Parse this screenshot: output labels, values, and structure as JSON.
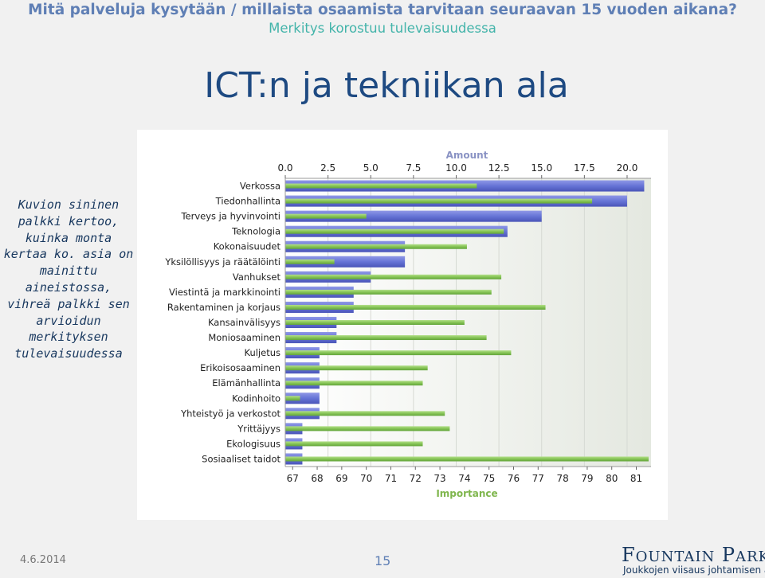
{
  "header": {
    "line1": "Mitä palveluja kysytään / millaista osaamista tarvitaan seuraavan 15 vuoden aikana?",
    "line2": "Merkitys korostuu tulevaisuudessa"
  },
  "slide_title": "ICT:n ja tekniikan ala",
  "side_note": "Kuvion sininen palkki kertoo, kuinka monta kertaa ko. asia on mainittu aineistossa, vihreä palkki sen arvioidun merkityksen tulevaisuudessa",
  "footer": {
    "date": "4.6.2014",
    "page": "15",
    "logo_name": "Fountain Park",
    "logo_tagline": "Joukkojen viisaus johtamisen arkeen"
  },
  "colors": {
    "amount_bar": "#6674d6",
    "importance_bar": "#86c456",
    "header_title": "#5f7fb5",
    "header_subtitle": "#43b4aa",
    "slide_title": "#1e4a82",
    "axis_label": "#8a93c4",
    "axis_label_importance": "#7fb64d"
  },
  "chart_data": {
    "type": "bar",
    "orientation": "horizontal",
    "categories": [
      "Verkossa",
      "Tiedonhallinta",
      "Terveys ja hyvinvointi",
      "Teknologia",
      "Kokonaisuudet",
      "Yksilöllisyys ja räätälöinti",
      "Vanhukset",
      "Viestintä ja markkinointi",
      "Rakentaminen ja korjaus",
      "Kansainvälisyys",
      "Moniosaaminen",
      "Kuljetus",
      "Erikoisosaaminen",
      "Elämänhallinta",
      "Kodinhoito",
      "Yhteistyö ja verkostot",
      "Yrittäjyys",
      "Ekologisuus",
      "Sosiaaliset taidot"
    ],
    "series": [
      {
        "name": "Amount",
        "axis": "top",
        "color": "#6674d6",
        "values": [
          21,
          20,
          15,
          13,
          7,
          7,
          5,
          4,
          4,
          3,
          3,
          2,
          2,
          2,
          2,
          2,
          1,
          1,
          1
        ]
      },
      {
        "name": "Importance",
        "axis": "bottom",
        "color": "#86c456",
        "values": [
          74.5,
          79.2,
          70.0,
          75.6,
          74.1,
          68.7,
          75.5,
          75.1,
          77.3,
          74.0,
          74.9,
          75.9,
          72.5,
          72.3,
          67.3,
          73.2,
          73.4,
          72.3,
          81.5
        ]
      }
    ],
    "top_axis": {
      "label": "Amount",
      "min": 0,
      "max": 21.4,
      "ticks": [
        "0.0",
        "2.5",
        "5.0",
        "7.5",
        "10.0",
        "12.5",
        "15.0",
        "17.5",
        "20.0"
      ]
    },
    "bottom_axis": {
      "label": "Importance",
      "min": 66.7,
      "max": 81.6,
      "ticks": [
        "67",
        "68",
        "69",
        "70",
        "71",
        "72",
        "73",
        "74",
        "75",
        "76",
        "77",
        "78",
        "79",
        "80",
        "81"
      ]
    },
    "legend": "none"
  }
}
